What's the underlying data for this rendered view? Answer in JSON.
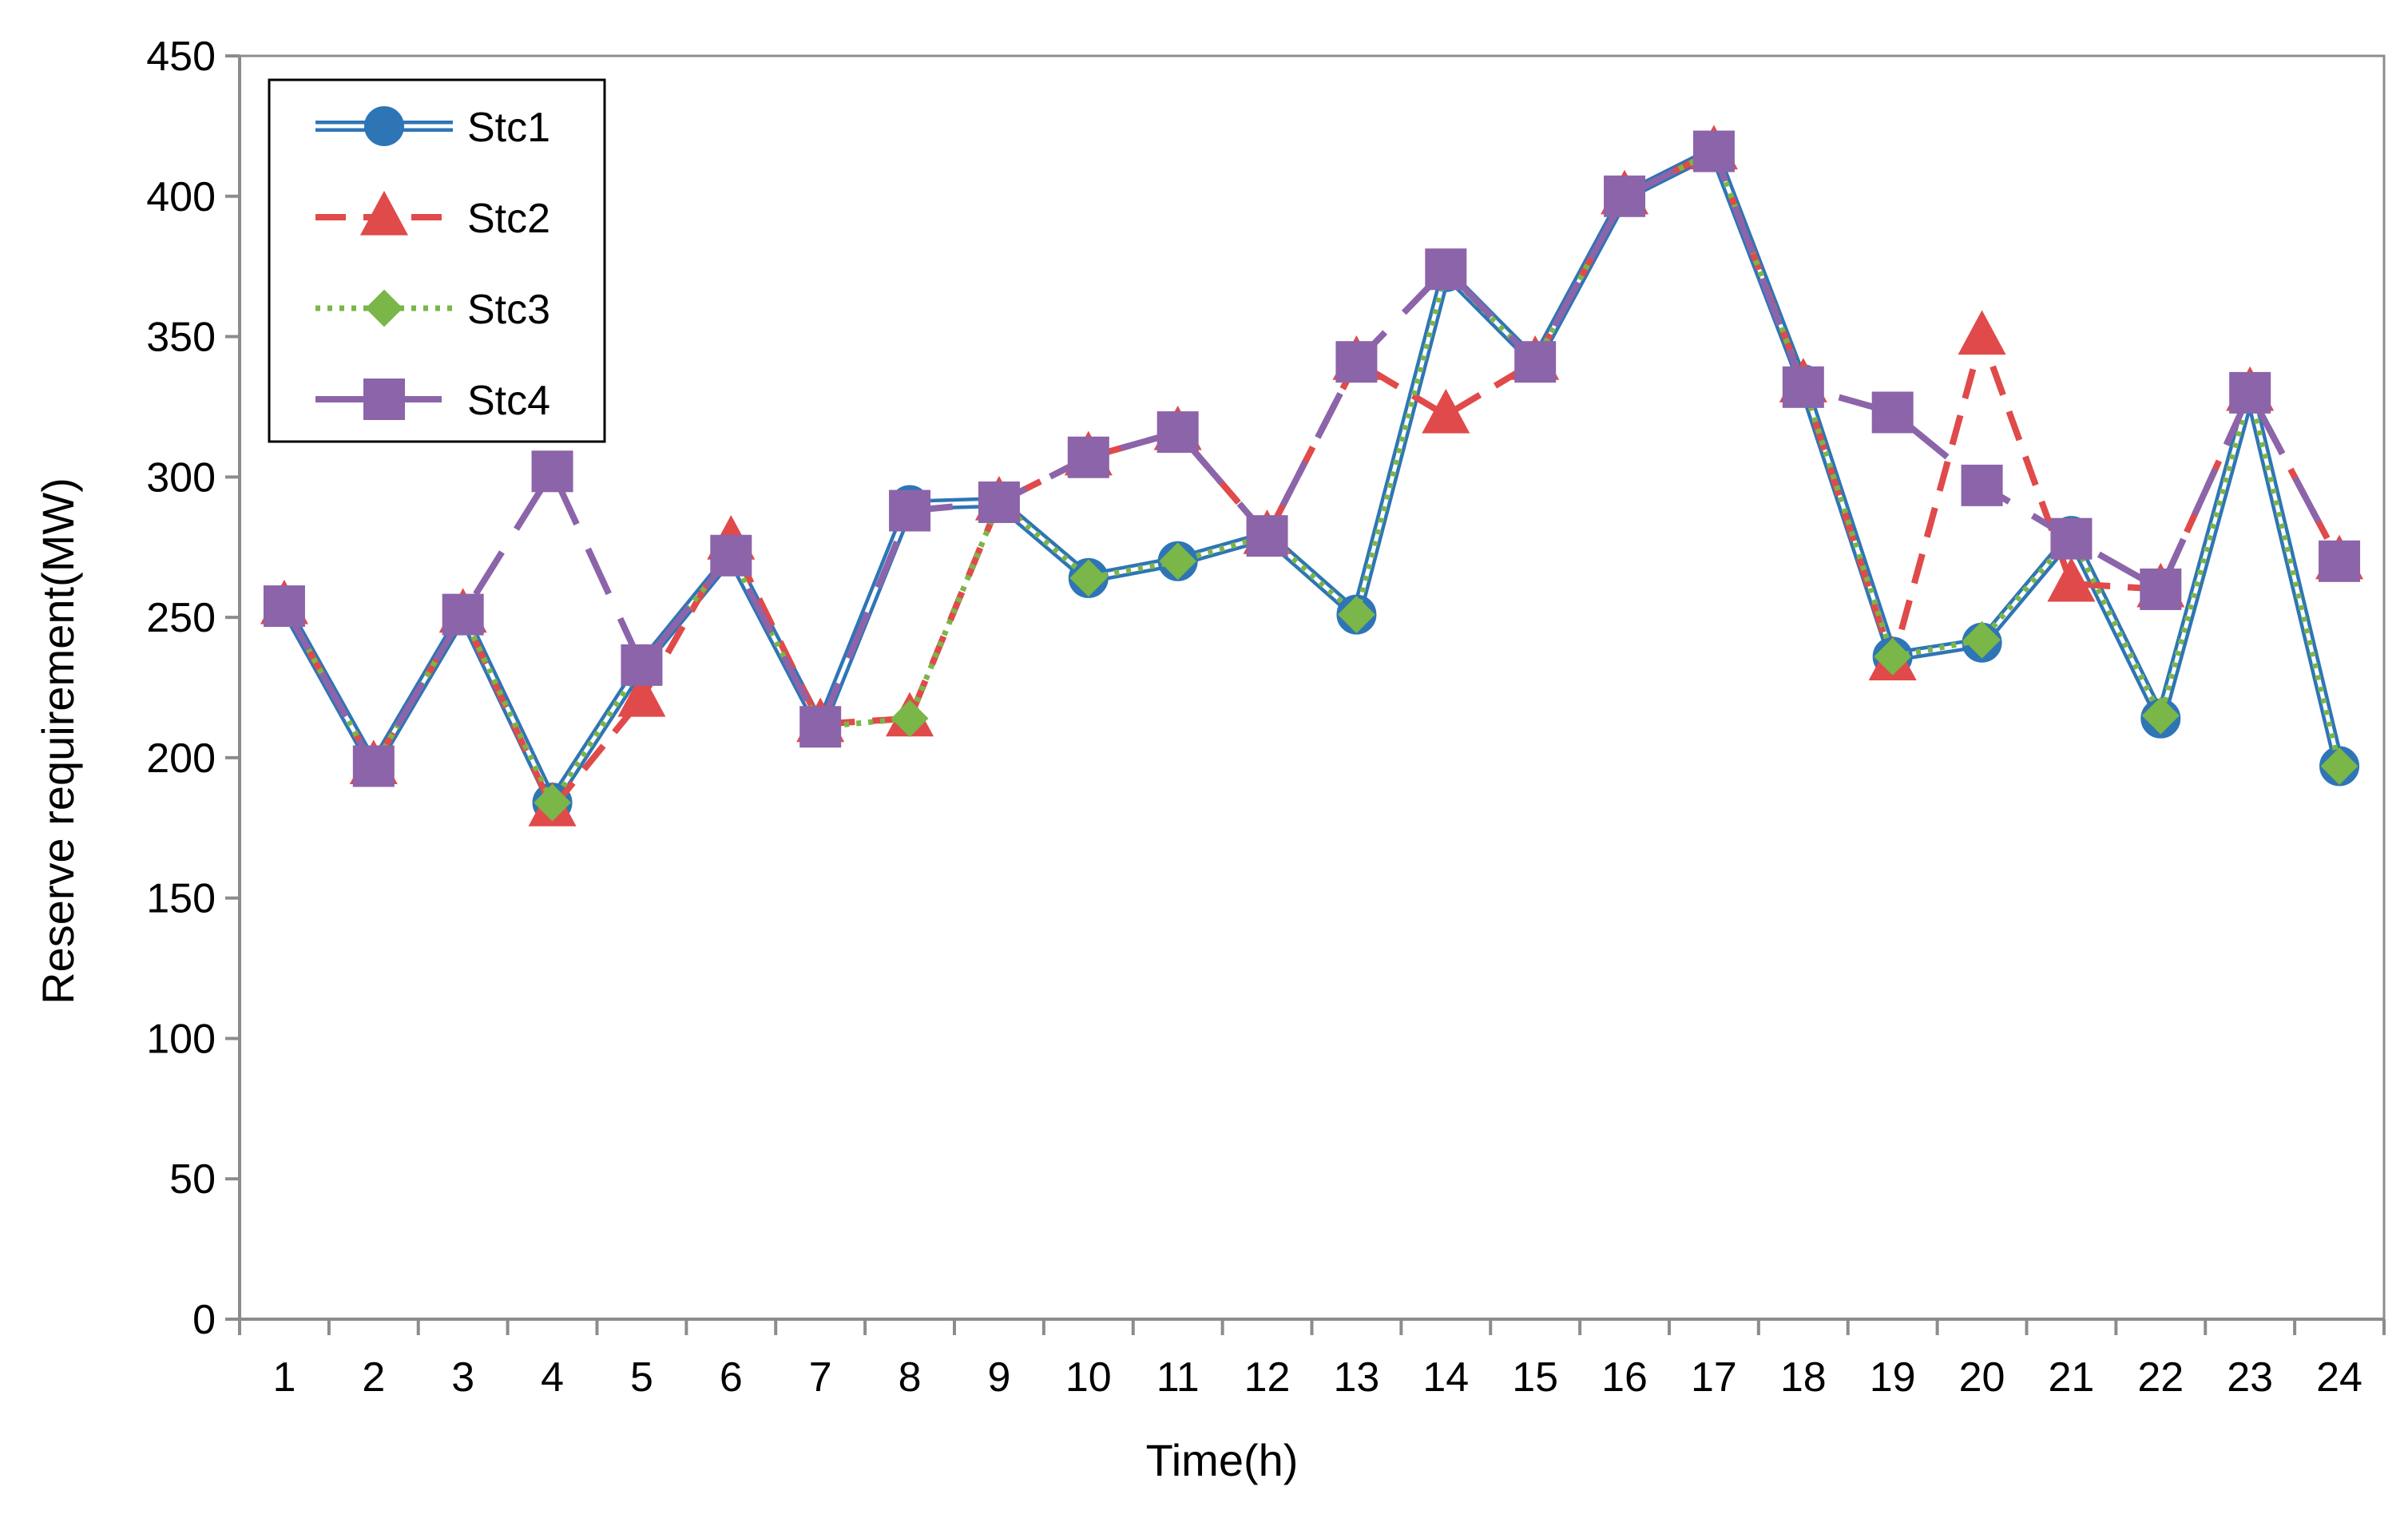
{
  "chart_data": {
    "type": "line",
    "title": "",
    "xlabel": "Time(h)",
    "ylabel": "Reserve requirement(MW)",
    "categories": [
      "1",
      "2",
      "3",
      "4",
      "5",
      "6",
      "7",
      "8",
      "9",
      "10",
      "11",
      "12",
      "13",
      "14",
      "15",
      "16",
      "17",
      "18",
      "19",
      "20",
      "21",
      "22",
      "23",
      "24"
    ],
    "ylim": [
      0,
      450
    ],
    "yticks": [
      0,
      50,
      100,
      150,
      200,
      250,
      300,
      350,
      400,
      450
    ],
    "grid": false,
    "legend": "top-left",
    "series": [
      {
        "name": "Stc1",
        "color": "#2E75B6",
        "marker": "circle",
        "line": "double",
        "values": [
          254,
          197,
          251,
          184,
          233,
          272,
          211,
          290,
          291,
          264,
          270,
          279,
          251,
          373,
          341,
          400,
          416,
          333,
          236,
          241,
          279,
          214,
          330,
          197
        ]
      },
      {
        "name": "Stc2",
        "color": "#E04A4A",
        "marker": "triangle",
        "line": "dashed",
        "values": [
          254,
          197,
          251,
          182,
          221,
          277,
          212,
          214,
          291,
          307,
          316,
          279,
          341,
          322,
          341,
          400,
          416,
          333,
          234,
          350,
          262,
          260,
          330,
          270
        ]
      },
      {
        "name": "Stc3",
        "color": "#7AB648",
        "marker": "diamond",
        "line": "dotted",
        "values": [
          254,
          197,
          251,
          184,
          233,
          272,
          211,
          214,
          291,
          264,
          270,
          279,
          251,
          373,
          341,
          400,
          416,
          333,
          236,
          242,
          279,
          215,
          330,
          197
        ]
      },
      {
        "name": "Stc4",
        "color": "#8C64AA",
        "marker": "square",
        "line": "long-dash",
        "values": [
          254,
          197,
          251,
          302,
          233,
          272,
          211,
          288,
          291,
          307,
          316,
          279,
          341,
          374,
          341,
          400,
          416,
          332,
          323,
          297,
          278,
          260,
          330,
          270
        ]
      }
    ]
  }
}
